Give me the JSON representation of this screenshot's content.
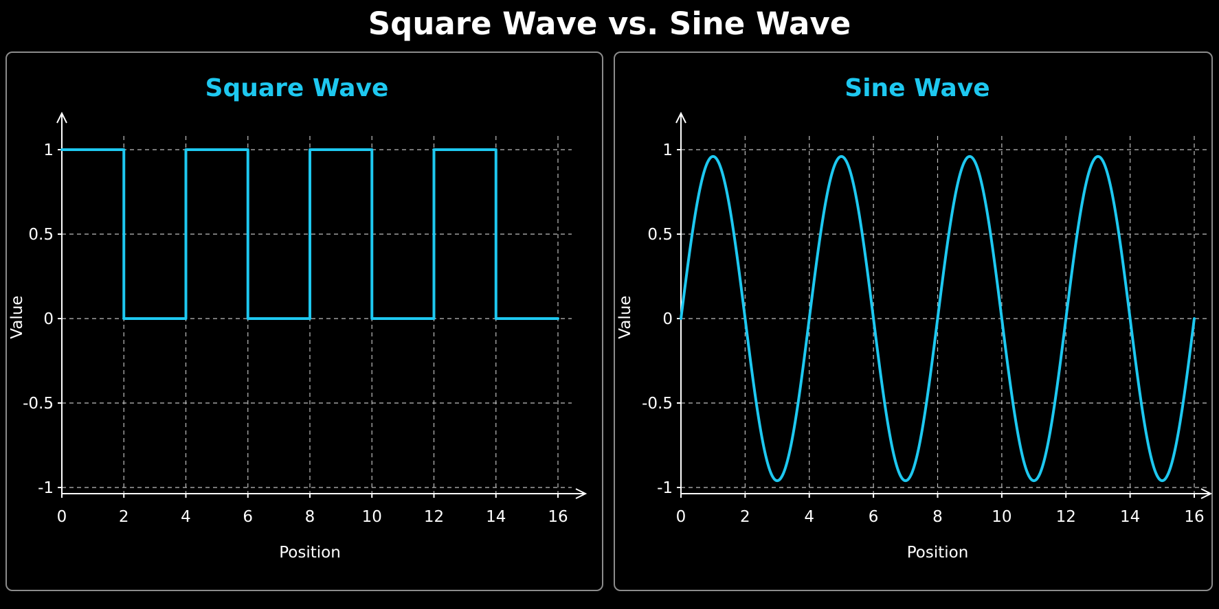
{
  "title": "Square Wave vs. Sine Wave",
  "colors": {
    "background": "#000000",
    "line": "#1ec8f0",
    "axis": "#ffffff",
    "grid": "#bfbfbf",
    "panel_border": "#8c8c8c"
  },
  "chart_data": [
    {
      "type": "line",
      "title": "Square Wave",
      "xlabel": "Position",
      "ylabel": "Value",
      "xlim": [
        0,
        16
      ],
      "ylim": [
        -1,
        1
      ],
      "x_ticks": [
        "0",
        "2",
        "4",
        "6",
        "8",
        "10",
        "12",
        "14",
        "16"
      ],
      "y_ticks": [
        "1",
        "0.5",
        "0",
        "-0.5",
        "-1"
      ],
      "grid": true,
      "series": [
        {
          "x": [
            0,
            2,
            2,
            4,
            4,
            6,
            6,
            8,
            8,
            10,
            10,
            12,
            12,
            14,
            14,
            16
          ],
          "y": [
            1,
            1,
            0,
            0,
            1,
            1,
            0,
            0,
            1,
            1,
            0,
            0,
            1,
            1,
            0,
            0
          ]
        }
      ]
    },
    {
      "type": "line",
      "title": "Sine Wave",
      "xlabel": "Position",
      "ylabel": "Value",
      "xlim": [
        0,
        16
      ],
      "ylim": [
        -1,
        1
      ],
      "x_ticks": [
        "0",
        "2",
        "4",
        "6",
        "8",
        "10",
        "12",
        "14",
        "16"
      ],
      "y_ticks": [
        "1",
        "0.5",
        "0",
        "-0.5",
        "-1"
      ],
      "grid": true,
      "series": [
        {
          "function": "sine",
          "amplitude": 0.96,
          "period": 4,
          "x_start": 0,
          "x_end": 16
        }
      ]
    }
  ]
}
